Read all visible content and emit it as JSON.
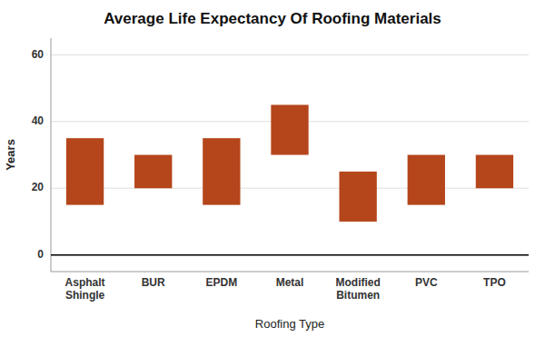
{
  "chart_data": {
    "type": "range_bar",
    "title": "Average Life Expectancy Of Roofing Materials",
    "x_label": "Roofing Type",
    "y_label": "Years",
    "categories": [
      "Asphalt\nShingle",
      "BUR",
      "EPDM",
      "Metal",
      "Modified\nBitumen",
      "PVC",
      "TPO"
    ],
    "bottoms": [
      15,
      20,
      15,
      30,
      10,
      15,
      20
    ],
    "values": [
      35,
      30,
      35,
      45,
      25,
      30,
      30
    ],
    "color": "#b5451b",
    "ylim": [
      -5,
      65
    ],
    "yticks": [
      0,
      20,
      40,
      60
    ],
    "grid": true
  }
}
